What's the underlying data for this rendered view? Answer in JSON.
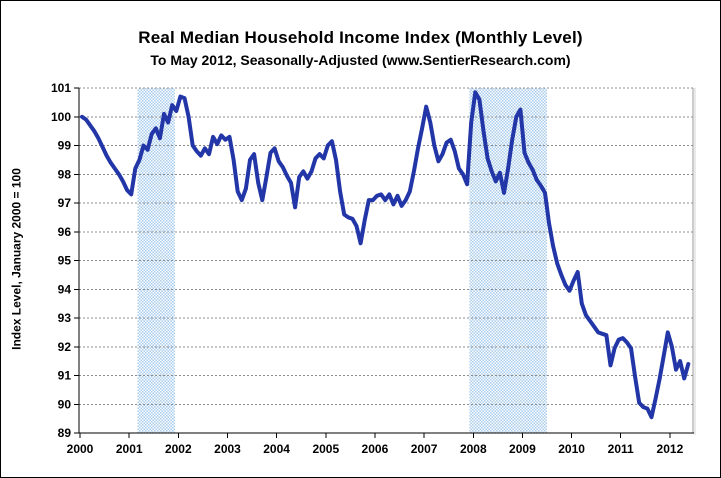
{
  "header": {
    "title": "Real Median Household Income Index (Monthly Level)",
    "subtitle": "To May 2012, Seasonally-Adjusted (www.SentierResearch.com)"
  },
  "chart_data": {
    "type": "line",
    "title": "Real Median Household Income Index (Monthly Level)",
    "subtitle": "To May 2012, Seasonally-Adjusted (www.SentierResearch.com)",
    "ylabel": "Index Level, January 2000 = 100",
    "xlabel": "",
    "ylim": [
      89,
      101
    ],
    "ytick_step": 1,
    "xlim": [
      2000,
      2012.47
    ],
    "xticks": [
      2000,
      2001,
      2002,
      2003,
      2004,
      2005,
      2006,
      2007,
      2008,
      2009,
      2010,
      2011,
      2012
    ],
    "grid": true,
    "legend": false,
    "frequency": "monthly",
    "start_month": "2000-01",
    "end_month": "2012-05",
    "series": [
      {
        "name": "Real Median Household Income Index",
        "values": [
          100.0,
          99.9,
          99.7,
          99.5,
          99.25,
          98.95,
          98.65,
          98.4,
          98.2,
          98.0,
          97.75,
          97.45,
          97.3,
          98.2,
          98.5,
          99.0,
          98.85,
          99.4,
          99.6,
          99.25,
          100.1,
          99.8,
          100.4,
          100.2,
          100.7,
          100.65,
          100.0,
          99.0,
          98.8,
          98.65,
          98.9,
          98.7,
          99.3,
          99.05,
          99.35,
          99.2,
          99.3,
          98.5,
          97.4,
          97.1,
          97.5,
          98.5,
          98.7,
          97.7,
          97.1,
          97.9,
          98.75,
          98.9,
          98.45,
          98.25,
          97.95,
          97.7,
          96.85,
          97.9,
          98.1,
          97.85,
          98.1,
          98.55,
          98.7,
          98.55,
          99.0,
          99.15,
          98.5,
          97.4,
          96.6,
          96.5,
          96.45,
          96.2,
          95.6,
          96.4,
          97.1,
          97.1,
          97.25,
          97.3,
          97.1,
          97.3,
          96.95,
          97.25,
          96.9,
          97.1,
          97.4,
          98.1,
          98.9,
          99.6,
          100.35,
          99.8,
          99.0,
          98.45,
          98.7,
          99.1,
          99.2,
          98.8,
          98.2,
          98.0,
          97.65,
          99.8,
          100.85,
          100.6,
          99.5,
          98.55,
          98.1,
          97.75,
          98.05,
          97.35,
          98.2,
          99.2,
          100.0,
          100.25,
          98.75,
          98.4,
          98.15,
          97.8,
          97.6,
          97.35,
          96.3,
          95.5,
          94.9,
          94.5,
          94.15,
          93.95,
          94.3,
          94.6,
          93.5,
          93.1,
          92.9,
          92.7,
          92.5,
          92.45,
          92.4,
          91.35,
          91.95,
          92.25,
          92.3,
          92.15,
          91.95,
          90.95,
          90.05,
          89.9,
          89.85,
          89.55,
          90.2,
          90.9,
          91.7,
          92.5,
          92.0,
          91.2,
          91.5,
          90.9,
          91.4
        ]
      }
    ],
    "recession_bands": [
      {
        "label": "2001 recession",
        "from": 2001.17,
        "to": 2001.93
      },
      {
        "label": "2007-2009 recession",
        "from": 2007.92,
        "to": 2009.5
      }
    ],
    "colors": {
      "line": "#2236a8",
      "band": "#a9cdee",
      "grid": "#8c8c8c",
      "axis": "#000000",
      "plot_border": "#9a9a9a"
    }
  }
}
